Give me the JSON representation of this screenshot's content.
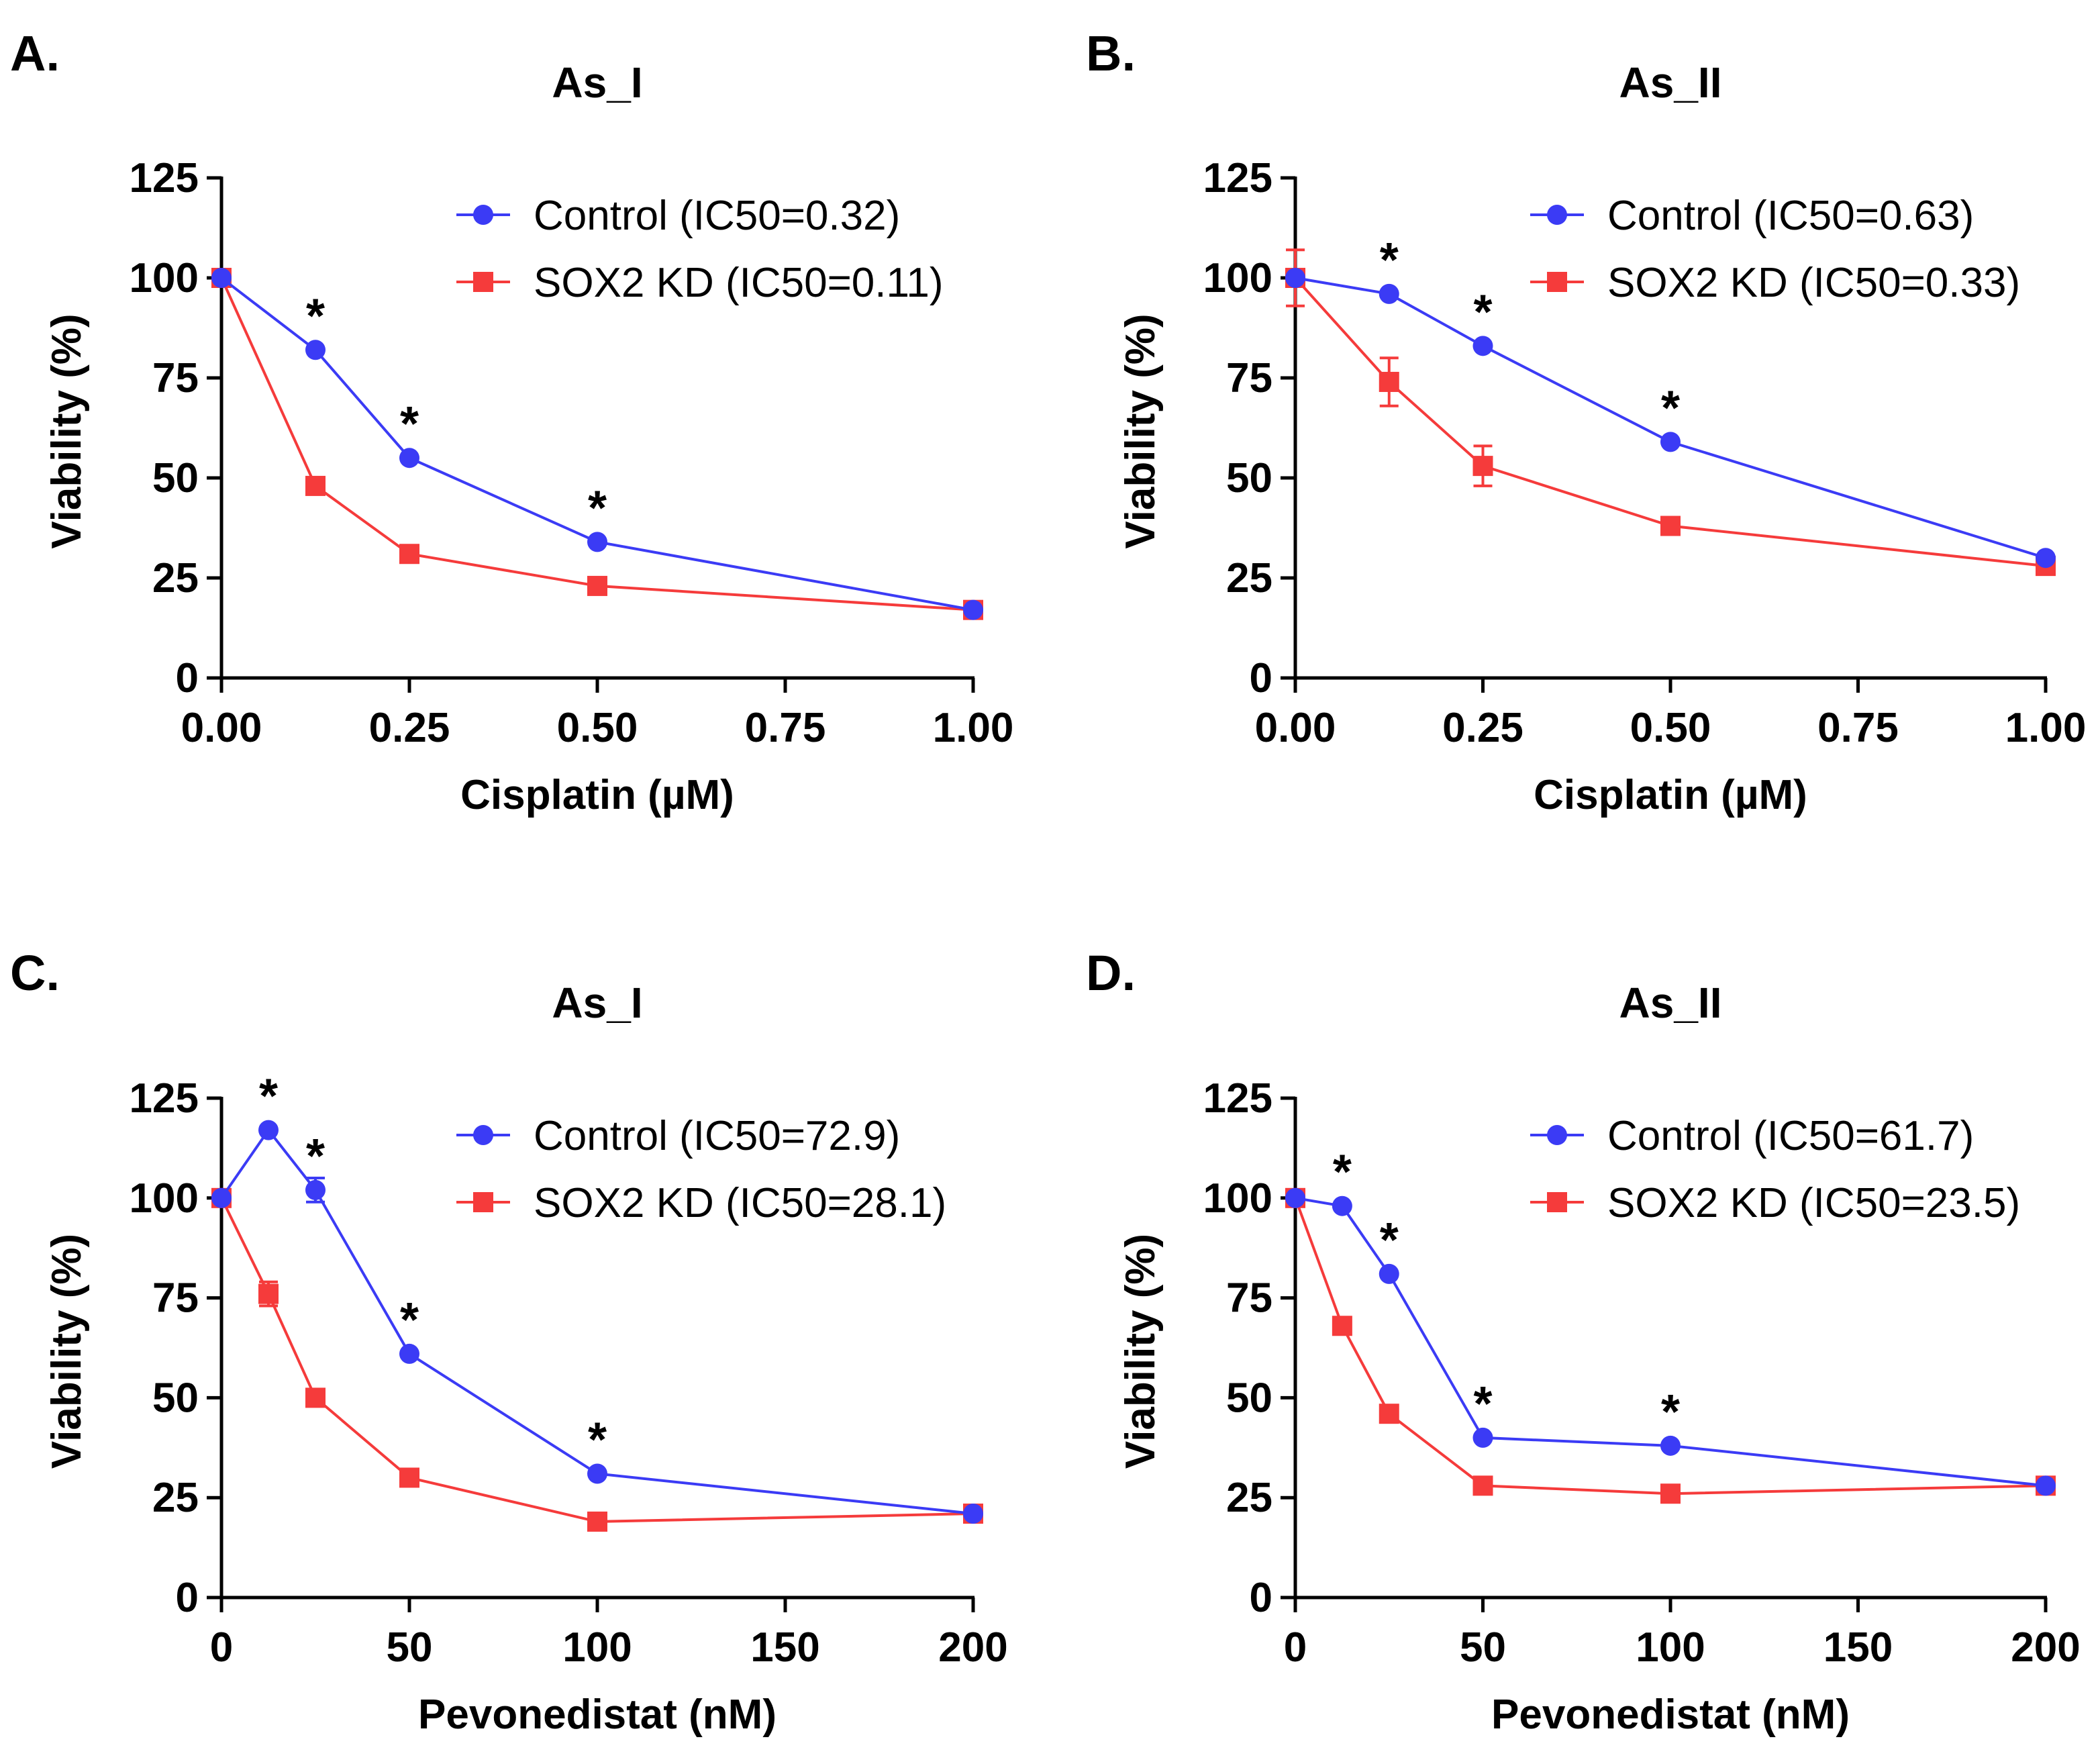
{
  "chart_data": [
    {
      "panel": "A.",
      "type": "line",
      "title": "As_I",
      "xlabel": "Cisplatin (µM)",
      "ylabel": "Viability (%)",
      "xlim": [
        0,
        1
      ],
      "ylim": [
        0,
        125
      ],
      "xticks": [
        0,
        0.25,
        0.5,
        0.75,
        1.0
      ],
      "xtick_labels": [
        "0.00",
        "0.25",
        "0.50",
        "0.75",
        "1.00"
      ],
      "yticks": [
        0,
        25,
        50,
        75,
        100,
        125
      ],
      "ytick_labels": [
        "0",
        "25",
        "50",
        "75",
        "100",
        "125"
      ],
      "legend_position": "top-right",
      "series": [
        {
          "name": "Control (IC50=0.32)",
          "color": "#3b3bf5",
          "marker": "circle",
          "x": [
            0,
            0.125,
            0.25,
            0.5,
            1.0
          ],
          "y": [
            100,
            82,
            55,
            34,
            17
          ],
          "err": [
            1.5,
            1.5,
            1.5,
            1.5,
            1.5
          ]
        },
        {
          "name": "SOX2 KD (IC50=0.11)",
          "color": "#f53b3b",
          "marker": "square",
          "x": [
            0,
            0.125,
            0.25,
            0.5,
            1.0
          ],
          "y": [
            100,
            48,
            31,
            23,
            17
          ],
          "err": [
            2,
            1.5,
            1.5,
            1.5,
            1.5
          ]
        }
      ],
      "annotations": [
        {
          "text": "*",
          "x": 0.125,
          "y": 82
        },
        {
          "text": "*",
          "x": 0.25,
          "y": 55
        },
        {
          "text": "*",
          "x": 0.5,
          "y": 34
        }
      ]
    },
    {
      "panel": "B.",
      "type": "line",
      "title": "As_II",
      "xlabel": "Cisplatin (µM)",
      "ylabel": "Viability (%)",
      "xlim": [
        0,
        1
      ],
      "ylim": [
        0,
        125
      ],
      "xticks": [
        0,
        0.25,
        0.5,
        0.75,
        1.0
      ],
      "xtick_labels": [
        "0.00",
        "0.25",
        "0.50",
        "0.75",
        "1.00"
      ],
      "yticks": [
        0,
        25,
        50,
        75,
        100,
        125
      ],
      "ytick_labels": [
        "0",
        "25",
        "50",
        "75",
        "100",
        "125"
      ],
      "legend_position": "top-right",
      "series": [
        {
          "name": "Control (IC50=0.63)",
          "color": "#3b3bf5",
          "marker": "circle",
          "x": [
            0,
            0.125,
            0.25,
            0.5,
            1.0
          ],
          "y": [
            100,
            96,
            83,
            59,
            30
          ],
          "err": [
            1.5,
            1.5,
            1.5,
            1.5,
            1.5
          ]
        },
        {
          "name": "SOX2 KD (IC50=0.33)",
          "color": "#f53b3b",
          "marker": "square",
          "x": [
            0,
            0.125,
            0.25,
            0.5,
            1.0
          ],
          "y": [
            100,
            74,
            53,
            38,
            28
          ],
          "err": [
            7,
            6,
            5,
            2,
            1.5
          ]
        }
      ],
      "annotations": [
        {
          "text": "*",
          "x": 0.125,
          "y": 96
        },
        {
          "text": "*",
          "x": 0.25,
          "y": 83
        },
        {
          "text": "*",
          "x": 0.5,
          "y": 59
        }
      ]
    },
    {
      "panel": "C.",
      "type": "line",
      "title": "As_I",
      "xlabel": "Pevonedistat (nM)",
      "ylabel": "Viability (%)",
      "xlim": [
        0,
        200
      ],
      "ylim": [
        0,
        125
      ],
      "xticks": [
        0,
        50,
        100,
        150,
        200
      ],
      "xtick_labels": [
        "0",
        "50",
        "100",
        "150",
        "200"
      ],
      "yticks": [
        0,
        25,
        50,
        75,
        100,
        125
      ],
      "ytick_labels": [
        "0",
        "25",
        "50",
        "75",
        "100",
        "125"
      ],
      "legend_position": "top-right",
      "series": [
        {
          "name": "Control (IC50=72.9)",
          "color": "#3b3bf5",
          "marker": "circle",
          "x": [
            0,
            12.5,
            25,
            50,
            100,
            200
          ],
          "y": [
            100,
            117,
            102,
            61,
            31,
            21
          ],
          "err": [
            1.5,
            1.5,
            3,
            1.5,
            1.5,
            1.5
          ]
        },
        {
          "name": "SOX2 KD (IC50=28.1)",
          "color": "#f53b3b",
          "marker": "square",
          "x": [
            0,
            12.5,
            25,
            50,
            100,
            200
          ],
          "y": [
            100,
            76,
            50,
            30,
            19,
            21
          ],
          "err": [
            1.5,
            3,
            1.5,
            1.5,
            1.5,
            1.5
          ]
        }
      ],
      "annotations": [
        {
          "text": "*",
          "x": 12.5,
          "y": 117
        },
        {
          "text": "*",
          "x": 25,
          "y": 102
        },
        {
          "text": "*",
          "x": 50,
          "y": 61
        },
        {
          "text": "*",
          "x": 100,
          "y": 31
        }
      ]
    },
    {
      "panel": "D.",
      "type": "line",
      "title": "As_II",
      "xlabel": "Pevonedistat (nM)",
      "ylabel": "Viability (%)",
      "xlim": [
        0,
        200
      ],
      "ylim": [
        0,
        125
      ],
      "xticks": [
        0,
        50,
        100,
        150,
        200
      ],
      "xtick_labels": [
        "0",
        "50",
        "100",
        "150",
        "200"
      ],
      "yticks": [
        0,
        25,
        50,
        75,
        100,
        125
      ],
      "ytick_labels": [
        "0",
        "25",
        "50",
        "75",
        "100",
        "125"
      ],
      "legend_position": "top-right",
      "series": [
        {
          "name": "Control (IC50=61.7)",
          "color": "#3b3bf5",
          "marker": "circle",
          "x": [
            0,
            12.5,
            25,
            50,
            100,
            200
          ],
          "y": [
            100,
            98,
            81,
            40,
            38,
            28
          ],
          "err": [
            1.5,
            1.5,
            1.5,
            1.5,
            1.5,
            1.5
          ]
        },
        {
          "name": "SOX2 KD (IC50=23.5)",
          "color": "#f53b3b",
          "marker": "square",
          "x": [
            0,
            12.5,
            25,
            50,
            100,
            200
          ],
          "y": [
            100,
            68,
            46,
            28,
            26,
            28
          ],
          "err": [
            1.5,
            1.5,
            1.5,
            1.5,
            1.5,
            1.5
          ]
        }
      ],
      "annotations": [
        {
          "text": "*",
          "x": 12.5,
          "y": 98
        },
        {
          "text": "*",
          "x": 25,
          "y": 81
        },
        {
          "text": "*",
          "x": 50,
          "y": 40
        },
        {
          "text": "*",
          "x": 100,
          "y": 38
        }
      ]
    }
  ]
}
